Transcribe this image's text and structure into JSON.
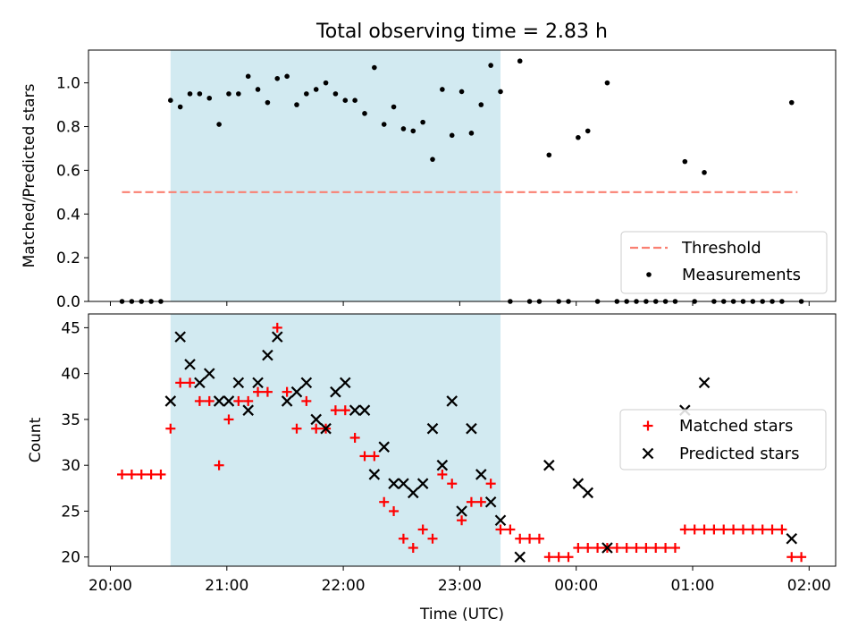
{
  "chart_data": [
    {
      "panel": "top",
      "type": "scatter",
      "title": "Total observing time = 2.83 h",
      "ylabel": "Matched/Predicted stars",
      "xlabel": "",
      "ylim": [
        0,
        1.15
      ],
      "yticks": [
        "0.0",
        "0.2",
        "0.4",
        "0.6",
        "0.8",
        "1.0"
      ],
      "shaded_span": {
        "from": "20:31",
        "to": "23:21",
        "color": "#add8e6"
      },
      "threshold": {
        "name": "Threshold",
        "value": 0.5,
        "from": "20:06",
        "to": "01:54",
        "color": "#fa8072",
        "style": "dashed"
      },
      "legend": {
        "placement": "lower right",
        "entries": [
          "Threshold",
          "Measurements"
        ]
      },
      "series": [
        {
          "name": "Measurements",
          "color": "#000000",
          "marker": "dot",
          "points": [
            {
              "t": "20:06",
              "y": 0.0
            },
            {
              "t": "20:11",
              "y": 0.0
            },
            {
              "t": "20:16",
              "y": 0.0
            },
            {
              "t": "20:21",
              "y": 0.0
            },
            {
              "t": "20:26",
              "y": 0.0
            },
            {
              "t": "20:31",
              "y": 0.92
            },
            {
              "t": "20:36",
              "y": 0.89
            },
            {
              "t": "20:41",
              "y": 0.95
            },
            {
              "t": "20:46",
              "y": 0.95
            },
            {
              "t": "20:51",
              "y": 0.93
            },
            {
              "t": "20:56",
              "y": 0.81
            },
            {
              "t": "21:01",
              "y": 0.95
            },
            {
              "t": "21:06",
              "y": 0.95
            },
            {
              "t": "21:11",
              "y": 1.03
            },
            {
              "t": "21:16",
              "y": 0.97
            },
            {
              "t": "21:21",
              "y": 0.91
            },
            {
              "t": "21:26",
              "y": 1.02
            },
            {
              "t": "21:31",
              "y": 1.03
            },
            {
              "t": "21:36",
              "y": 0.9
            },
            {
              "t": "21:41",
              "y": 0.95
            },
            {
              "t": "21:46",
              "y": 0.97
            },
            {
              "t": "21:51",
              "y": 1.0
            },
            {
              "t": "21:56",
              "y": 0.95
            },
            {
              "t": "22:01",
              "y": 0.92
            },
            {
              "t": "22:06",
              "y": 0.92
            },
            {
              "t": "22:11",
              "y": 0.86
            },
            {
              "t": "22:16",
              "y": 1.07
            },
            {
              "t": "22:21",
              "y": 0.81
            },
            {
              "t": "22:26",
              "y": 0.89
            },
            {
              "t": "22:31",
              "y": 0.79
            },
            {
              "t": "22:36",
              "y": 0.78
            },
            {
              "t": "22:41",
              "y": 0.82
            },
            {
              "t": "22:46",
              "y": 0.65
            },
            {
              "t": "22:51",
              "y": 0.97
            },
            {
              "t": "22:56",
              "y": 0.76
            },
            {
              "t": "23:01",
              "y": 0.96
            },
            {
              "t": "23:06",
              "y": 0.77
            },
            {
              "t": "23:11",
              "y": 0.9
            },
            {
              "t": "23:16",
              "y": 1.08
            },
            {
              "t": "23:21",
              "y": 0.96
            },
            {
              "t": "23:26",
              "y": 0.0
            },
            {
              "t": "23:31",
              "y": 1.1
            },
            {
              "t": "23:36",
              "y": 0.0
            },
            {
              "t": "23:41",
              "y": 0.0
            },
            {
              "t": "23:46",
              "y": 0.67
            },
            {
              "t": "23:51",
              "y": 0.0
            },
            {
              "t": "23:56",
              "y": 0.0
            },
            {
              "t": "00:01",
              "y": 0.75
            },
            {
              "t": "00:06",
              "y": 0.78
            },
            {
              "t": "00:11",
              "y": 0.0
            },
            {
              "t": "00:16",
              "y": 1.0
            },
            {
              "t": "00:21",
              "y": 0.0
            },
            {
              "t": "00:26",
              "y": 0.0
            },
            {
              "t": "00:31",
              "y": 0.0
            },
            {
              "t": "00:36",
              "y": 0.0
            },
            {
              "t": "00:41",
              "y": 0.0
            },
            {
              "t": "00:46",
              "y": 0.0
            },
            {
              "t": "00:51",
              "y": 0.0
            },
            {
              "t": "00:56",
              "y": 0.64
            },
            {
              "t": "01:01",
              "y": 0.0
            },
            {
              "t": "01:06",
              "y": 0.59
            },
            {
              "t": "01:11",
              "y": 0.0
            },
            {
              "t": "01:16",
              "y": 0.0
            },
            {
              "t": "01:21",
              "y": 0.0
            },
            {
              "t": "01:26",
              "y": 0.0
            },
            {
              "t": "01:31",
              "y": 0.0
            },
            {
              "t": "01:36",
              "y": 0.0
            },
            {
              "t": "01:41",
              "y": 0.0
            },
            {
              "t": "01:46",
              "y": 0.0
            },
            {
              "t": "01:51",
              "y": 0.91
            },
            {
              "t": "01:56",
              "y": 0.0
            }
          ]
        }
      ]
    },
    {
      "panel": "bottom",
      "type": "scatter",
      "title": "",
      "ylabel": "Count",
      "xlabel": "Time (UTC)",
      "ylim": [
        19,
        46.5
      ],
      "yticks": [
        "20",
        "25",
        "30",
        "35",
        "40",
        "45"
      ],
      "xticks": [
        "20:00",
        "21:00",
        "22:00",
        "23:00",
        "00:00",
        "01:00",
        "02:00"
      ],
      "shaded_span": {
        "from": "20:31",
        "to": "23:21",
        "color": "#add8e6"
      },
      "legend": {
        "placement": "center right",
        "entries": [
          "Matched stars",
          "Predicted stars"
        ]
      },
      "series": [
        {
          "name": "Matched stars",
          "color": "#ff0000",
          "marker": "plus",
          "points": [
            {
              "t": "20:06",
              "y": 29
            },
            {
              "t": "20:11",
              "y": 29
            },
            {
              "t": "20:16",
              "y": 29
            },
            {
              "t": "20:21",
              "y": 29
            },
            {
              "t": "20:26",
              "y": 29
            },
            {
              "t": "20:31",
              "y": 34
            },
            {
              "t": "20:36",
              "y": 39
            },
            {
              "t": "20:41",
              "y": 39
            },
            {
              "t": "20:46",
              "y": 37
            },
            {
              "t": "20:51",
              "y": 37
            },
            {
              "t": "20:56",
              "y": 30
            },
            {
              "t": "21:01",
              "y": 35
            },
            {
              "t": "21:06",
              "y": 37
            },
            {
              "t": "21:11",
              "y": 37
            },
            {
              "t": "21:16",
              "y": 38
            },
            {
              "t": "21:21",
              "y": 38
            },
            {
              "t": "21:26",
              "y": 45
            },
            {
              "t": "21:31",
              "y": 38
            },
            {
              "t": "21:36",
              "y": 34
            },
            {
              "t": "21:41",
              "y": 37
            },
            {
              "t": "21:46",
              "y": 34
            },
            {
              "t": "21:51",
              "y": 34
            },
            {
              "t": "21:56",
              "y": 36
            },
            {
              "t": "22:01",
              "y": 36
            },
            {
              "t": "22:06",
              "y": 33
            },
            {
              "t": "22:11",
              "y": 31
            },
            {
              "t": "22:16",
              "y": 31
            },
            {
              "t": "22:21",
              "y": 26
            },
            {
              "t": "22:26",
              "y": 25
            },
            {
              "t": "22:31",
              "y": 22
            },
            {
              "t": "22:36",
              "y": 21
            },
            {
              "t": "22:41",
              "y": 23
            },
            {
              "t": "22:46",
              "y": 22
            },
            {
              "t": "22:51",
              "y": 29
            },
            {
              "t": "22:56",
              "y": 28
            },
            {
              "t": "23:01",
              "y": 24
            },
            {
              "t": "23:06",
              "y": 26
            },
            {
              "t": "23:11",
              "y": 26
            },
            {
              "t": "23:16",
              "y": 28
            },
            {
              "t": "23:21",
              "y": 23
            },
            {
              "t": "23:26",
              "y": 23
            },
            {
              "t": "23:31",
              "y": 22
            },
            {
              "t": "23:36",
              "y": 22
            },
            {
              "t": "23:41",
              "y": 22
            },
            {
              "t": "23:46",
              "y": 20
            },
            {
              "t": "23:51",
              "y": 20
            },
            {
              "t": "23:56",
              "y": 20
            },
            {
              "t": "00:01",
              "y": 21
            },
            {
              "t": "00:06",
              "y": 21
            },
            {
              "t": "00:11",
              "y": 21
            },
            {
              "t": "00:16",
              "y": 21
            },
            {
              "t": "00:21",
              "y": 21
            },
            {
              "t": "00:26",
              "y": 21
            },
            {
              "t": "00:31",
              "y": 21
            },
            {
              "t": "00:36",
              "y": 21
            },
            {
              "t": "00:41",
              "y": 21
            },
            {
              "t": "00:46",
              "y": 21
            },
            {
              "t": "00:51",
              "y": 21
            },
            {
              "t": "00:56",
              "y": 23
            },
            {
              "t": "01:01",
              "y": 23
            },
            {
              "t": "01:06",
              "y": 23
            },
            {
              "t": "01:11",
              "y": 23
            },
            {
              "t": "01:16",
              "y": 23
            },
            {
              "t": "01:21",
              "y": 23
            },
            {
              "t": "01:26",
              "y": 23
            },
            {
              "t": "01:31",
              "y": 23
            },
            {
              "t": "01:36",
              "y": 23
            },
            {
              "t": "01:41",
              "y": 23
            },
            {
              "t": "01:46",
              "y": 23
            },
            {
              "t": "01:51",
              "y": 20
            },
            {
              "t": "01:56",
              "y": 20
            }
          ]
        },
        {
          "name": "Predicted stars",
          "color": "#000000",
          "marker": "x",
          "points": [
            {
              "t": "20:31",
              "y": 37
            },
            {
              "t": "20:36",
              "y": 44
            },
            {
              "t": "20:41",
              "y": 41
            },
            {
              "t": "20:46",
              "y": 39
            },
            {
              "t": "20:51",
              "y": 40
            },
            {
              "t": "20:56",
              "y": 37
            },
            {
              "t": "21:01",
              "y": 37
            },
            {
              "t": "21:06",
              "y": 39
            },
            {
              "t": "21:11",
              "y": 36
            },
            {
              "t": "21:16",
              "y": 39
            },
            {
              "t": "21:21",
              "y": 42
            },
            {
              "t": "21:26",
              "y": 44
            },
            {
              "t": "21:31",
              "y": 37
            },
            {
              "t": "21:36",
              "y": 38
            },
            {
              "t": "21:41",
              "y": 39
            },
            {
              "t": "21:46",
              "y": 35
            },
            {
              "t": "21:51",
              "y": 34
            },
            {
              "t": "21:56",
              "y": 38
            },
            {
              "t": "22:01",
              "y": 39
            },
            {
              "t": "22:06",
              "y": 36
            },
            {
              "t": "22:11",
              "y": 36
            },
            {
              "t": "22:16",
              "y": 29
            },
            {
              "t": "22:21",
              "y": 32
            },
            {
              "t": "22:26",
              "y": 28
            },
            {
              "t": "22:31",
              "y": 28
            },
            {
              "t": "22:36",
              "y": 27
            },
            {
              "t": "22:41",
              "y": 28
            },
            {
              "t": "22:46",
              "y": 34
            },
            {
              "t": "22:51",
              "y": 30
            },
            {
              "t": "22:56",
              "y": 37
            },
            {
              "t": "23:01",
              "y": 25
            },
            {
              "t": "23:06",
              "y": 34
            },
            {
              "t": "23:11",
              "y": 29
            },
            {
              "t": "23:16",
              "y": 26
            },
            {
              "t": "23:21",
              "y": 24
            },
            {
              "t": "23:31",
              "y": 20
            },
            {
              "t": "23:46",
              "y": 30
            },
            {
              "t": "00:01",
              "y": 28
            },
            {
              "t": "00:06",
              "y": 27
            },
            {
              "t": "00:16",
              "y": 21
            },
            {
              "t": "00:56",
              "y": 36
            },
            {
              "t": "01:06",
              "y": 39
            },
            {
              "t": "01:51",
              "y": 22
            }
          ]
        }
      ]
    }
  ]
}
